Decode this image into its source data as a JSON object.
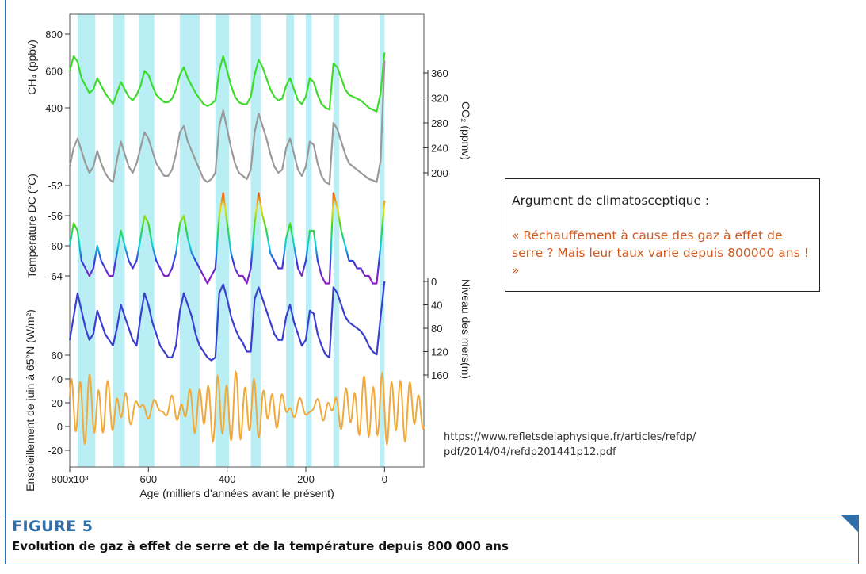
{
  "chart_data": {
    "type": "line",
    "xlabel": "Age (milliers d'années avant le présent)",
    "x_ticks": [
      "800x10³",
      "600",
      "400",
      "200",
      "0"
    ],
    "x_tick_values": [
      800,
      600,
      400,
      200,
      0
    ],
    "x_range": [
      800,
      -100
    ],
    "interglacial_bands": [
      [
        780,
        735
      ],
      [
        690,
        660
      ],
      [
        625,
        585
      ],
      [
        520,
        470
      ],
      [
        430,
        395
      ],
      [
        340,
        315
      ],
      [
        250,
        230
      ],
      [
        200,
        185
      ],
      [
        130,
        115
      ],
      [
        12,
        0
      ]
    ],
    "panels": [
      {
        "name": "CH4",
        "ylabel": "CH₄ (ppbv)",
        "color": "#3ddc2b",
        "axis": "left",
        "ticks": [
          "800",
          "600",
          "400"
        ],
        "tick_values": [
          800,
          600,
          400
        ],
        "x": [
          800,
          790,
          780,
          770,
          760,
          750,
          740,
          730,
          720,
          710,
          700,
          690,
          680,
          670,
          660,
          650,
          640,
          630,
          620,
          610,
          600,
          590,
          580,
          570,
          560,
          550,
          540,
          530,
          520,
          510,
          500,
          490,
          480,
          470,
          460,
          450,
          440,
          430,
          420,
          410,
          400,
          390,
          380,
          370,
          360,
          350,
          340,
          330,
          320,
          310,
          300,
          290,
          280,
          270,
          260,
          250,
          240,
          230,
          220,
          210,
          200,
          190,
          180,
          170,
          160,
          150,
          140,
          130,
          120,
          110,
          100,
          90,
          80,
          70,
          60,
          50,
          40,
          30,
          20,
          10,
          0
        ],
        "values": [
          600,
          680,
          650,
          560,
          520,
          480,
          500,
          560,
          520,
          480,
          450,
          420,
          480,
          540,
          500,
          460,
          440,
          470,
          520,
          600,
          580,
          520,
          470,
          450,
          430,
          430,
          450,
          500,
          580,
          620,
          560,
          520,
          480,
          450,
          420,
          410,
          420,
          440,
          600,
          680,
          600,
          520,
          460,
          430,
          420,
          420,
          460,
          580,
          660,
          620,
          560,
          500,
          460,
          440,
          450,
          520,
          560,
          500,
          440,
          420,
          460,
          560,
          540,
          470,
          420,
          400,
          390,
          640,
          620,
          560,
          500,
          470,
          460,
          450,
          440,
          420,
          400,
          390,
          380,
          480,
          700
        ]
      },
      {
        "name": "CO2",
        "ylabel": "CO₂ (ppmv)",
        "color": "#9a9a9a",
        "axis": "right",
        "ticks": [
          "360",
          "320",
          "280",
          "240",
          "200"
        ],
        "tick_values": [
          360,
          320,
          280,
          240,
          200
        ],
        "x": [
          800,
          790,
          780,
          770,
          760,
          750,
          740,
          730,
          720,
          710,
          700,
          690,
          680,
          670,
          660,
          650,
          640,
          630,
          620,
          610,
          600,
          590,
          580,
          570,
          560,
          550,
          540,
          530,
          520,
          510,
          500,
          490,
          480,
          470,
          460,
          450,
          440,
          430,
          420,
          410,
          400,
          390,
          380,
          370,
          360,
          350,
          340,
          330,
          320,
          310,
          300,
          290,
          280,
          270,
          260,
          250,
          240,
          230,
          220,
          210,
          200,
          190,
          180,
          170,
          160,
          150,
          140,
          130,
          120,
          110,
          100,
          90,
          80,
          70,
          60,
          50,
          40,
          30,
          20,
          10,
          0
        ],
        "values": [
          210,
          240,
          255,
          235,
          215,
          200,
          210,
          235,
          215,
          200,
          190,
          185,
          220,
          250,
          230,
          210,
          200,
          215,
          240,
          265,
          255,
          235,
          215,
          205,
          195,
          195,
          205,
          230,
          265,
          275,
          250,
          235,
          220,
          205,
          190,
          185,
          190,
          200,
          275,
          300,
          270,
          240,
          215,
          200,
          195,
          190,
          205,
          265,
          295,
          275,
          255,
          230,
          210,
          200,
          205,
          240,
          255,
          230,
          205,
          195,
          210,
          250,
          245,
          215,
          195,
          185,
          182,
          280,
          270,
          250,
          230,
          215,
          210,
          205,
          200,
          195,
          190,
          188,
          185,
          220,
          380
        ]
      },
      {
        "name": "Temperature",
        "ylabel": "Temperature DC (°C)",
        "color": "gradient",
        "axis": "left",
        "ticks": [
          "-52",
          "-56",
          "-60",
          "-64"
        ],
        "tick_values": [
          -52,
          -56,
          -60,
          -64
        ],
        "x": [
          800,
          790,
          780,
          770,
          760,
          750,
          740,
          730,
          720,
          710,
          700,
          690,
          680,
          670,
          660,
          650,
          640,
          630,
          620,
          610,
          600,
          590,
          580,
          570,
          560,
          550,
          540,
          530,
          520,
          510,
          500,
          490,
          480,
          470,
          460,
          450,
          440,
          430,
          420,
          410,
          400,
          390,
          380,
          370,
          360,
          350,
          340,
          330,
          320,
          310,
          300,
          290,
          280,
          270,
          260,
          250,
          240,
          230,
          220,
          210,
          200,
          190,
          180,
          170,
          160,
          150,
          140,
          130,
          120,
          110,
          100,
          90,
          80,
          70,
          60,
          50,
          40,
          30,
          20,
          10,
          0
        ],
        "values": [
          -60,
          -57,
          -58,
          -62,
          -63,
          -64,
          -63,
          -60,
          -62,
          -63,
          -64,
          -64,
          -61,
          -58,
          -60,
          -62,
          -63,
          -62,
          -59,
          -56,
          -57,
          -60,
          -62,
          -63,
          -64,
          -64,
          -63,
          -61,
          -57,
          -56,
          -59,
          -61,
          -62,
          -63,
          -64,
          -65,
          -64,
          -63,
          -56,
          -53,
          -57,
          -61,
          -63,
          -64,
          -64,
          -65,
          -63,
          -57,
          -53,
          -56,
          -58,
          -61,
          -62,
          -63,
          -63,
          -59,
          -57,
          -60,
          -63,
          -64,
          -62,
          -58,
          -58,
          -62,
          -64,
          -65,
          -65,
          -53,
          -55,
          -58,
          -60,
          -62,
          -62,
          -63,
          -63,
          -64,
          -64,
          -65,
          -65,
          -60,
          -54
        ]
      },
      {
        "name": "SeaLevel",
        "ylabel": "Niveau des mers(m)",
        "color": "#3a3fd0",
        "axis": "right",
        "ticks": [
          "0",
          "40",
          "80",
          "120",
          "160"
        ],
        "tick_values": [
          0,
          40,
          80,
          120,
          160
        ],
        "x": [
          800,
          790,
          780,
          770,
          760,
          750,
          740,
          730,
          720,
          710,
          700,
          690,
          680,
          670,
          660,
          650,
          640,
          630,
          620,
          610,
          600,
          590,
          580,
          570,
          560,
          550,
          540,
          530,
          520,
          510,
          500,
          490,
          480,
          470,
          460,
          450,
          440,
          430,
          420,
          410,
          400,
          390,
          380,
          370,
          360,
          350,
          340,
          330,
          320,
          310,
          300,
          290,
          280,
          270,
          260,
          250,
          240,
          230,
          220,
          210,
          200,
          190,
          180,
          170,
          160,
          150,
          140,
          130,
          120,
          110,
          100,
          90,
          80,
          70,
          60,
          50,
          40,
          30,
          20,
          10,
          0
        ],
        "values": [
          100,
          60,
          20,
          50,
          80,
          100,
          90,
          50,
          70,
          90,
          100,
          110,
          80,
          40,
          60,
          80,
          100,
          110,
          60,
          20,
          40,
          70,
          90,
          110,
          120,
          130,
          130,
          110,
          50,
          20,
          40,
          60,
          90,
          110,
          120,
          130,
          135,
          130,
          20,
          5,
          30,
          60,
          80,
          95,
          105,
          120,
          120,
          30,
          10,
          30,
          50,
          70,
          90,
          100,
          100,
          60,
          40,
          70,
          90,
          110,
          100,
          50,
          55,
          90,
          110,
          125,
          130,
          10,
          20,
          40,
          60,
          70,
          75,
          80,
          85,
          95,
          110,
          120,
          125,
          60,
          0
        ]
      },
      {
        "name": "Insolation",
        "ylabel": "Ensoleillement de juin à 65°N (W/m²)",
        "color": "#f2a93b",
        "axis": "left",
        "ticks": [
          "60",
          "40",
          "20",
          "0",
          "-20"
        ],
        "tick_values": [
          60,
          40,
          20,
          0,
          -20
        ],
        "x_range": [
          800,
          -100
        ],
        "amplitude_note": ""
      }
    ],
    "caption_note": ""
  },
  "callout": {
    "title": "Argument de climatosceptique :",
    "quote": "« Réchauffement à cause des gaz à effet de serre ? Mais leur taux varie depuis 800000 ans ! »"
  },
  "source": {
    "line1": "https://www.refletsdelaphysique.fr/articles/refdp/",
    "line2": "pdf/2014/04/refdp201441p12.pdf"
  },
  "figure": {
    "label": "FIGURE 5",
    "caption": "Evolution de gaz à effet de serre et de la température depuis 800 000 ans"
  },
  "colors": {
    "frame": "#2f6ea8",
    "band": "#b8eef4",
    "quote": "#d25a1e"
  }
}
